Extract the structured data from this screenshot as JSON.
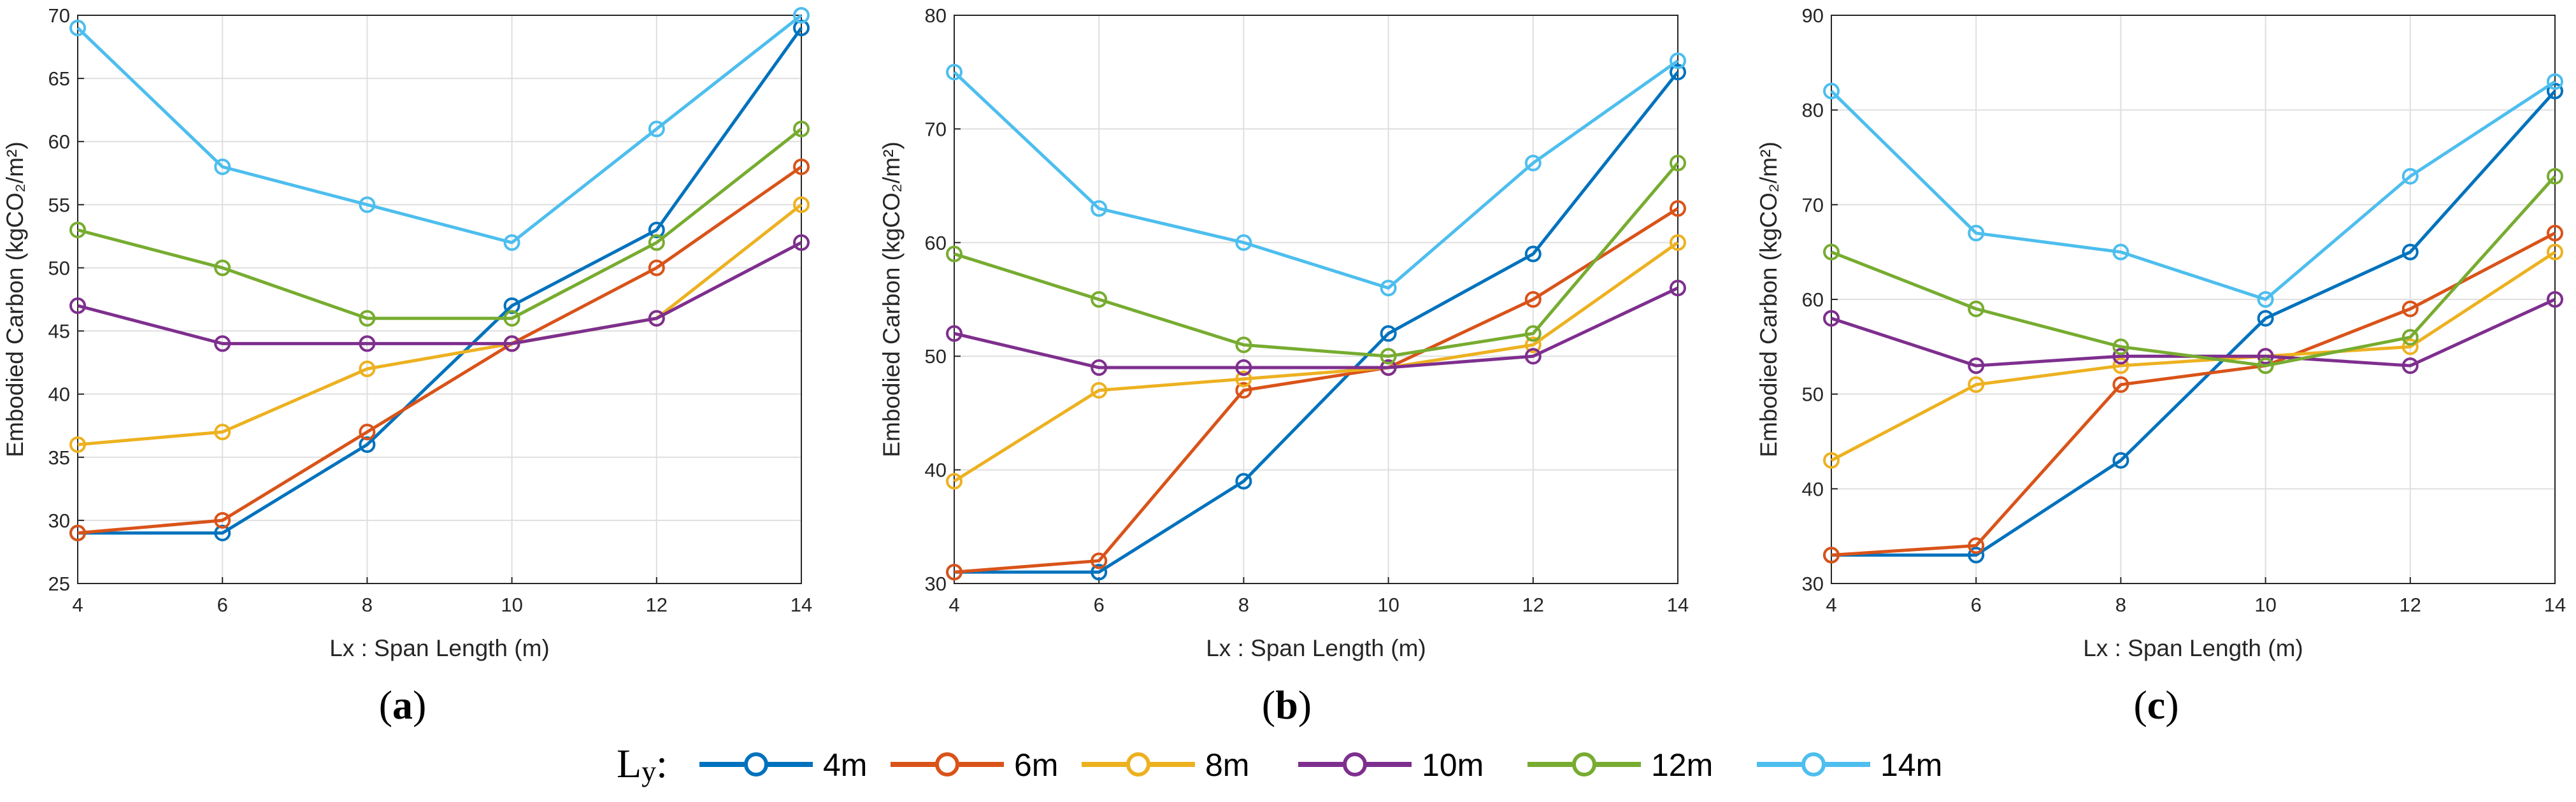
{
  "legend": {
    "title_main": "L",
    "title_sub": "y",
    "title_suffix": ":"
  },
  "series_colors": [
    "#0072bd",
    "#d95319",
    "#edb120",
    "#7e2f8e",
    "#77ac30",
    "#4dbeee"
  ],
  "chart_data": [
    {
      "type": "line",
      "label": "(a)",
      "label_open": "(",
      "label_letter": "a",
      "label_close": ")",
      "xlabel": "Lx : Span Length (m)",
      "ylabel": "Embodied Carbon (kgCO₂/m²)",
      "x": [
        4,
        6,
        8,
        10,
        12,
        14
      ],
      "xlim": [
        4,
        14
      ],
      "ylim": [
        25,
        70
      ],
      "yticks": [
        25,
        30,
        35,
        40,
        45,
        50,
        55,
        60,
        65,
        70
      ],
      "xticks": [
        4,
        6,
        8,
        10,
        12,
        14
      ],
      "grid": true,
      "series": [
        {
          "name": "4m",
          "values": [
            29,
            29,
            36,
            47,
            53,
            69
          ]
        },
        {
          "name": "6m",
          "values": [
            29,
            30,
            37,
            44,
            50,
            58
          ]
        },
        {
          "name": "8m",
          "values": [
            36,
            37,
            42,
            44,
            46,
            55
          ]
        },
        {
          "name": "10m",
          "values": [
            47,
            44,
            44,
            44,
            46,
            52
          ]
        },
        {
          "name": "12m",
          "values": [
            53,
            50,
            46,
            46,
            52,
            61
          ]
        },
        {
          "name": "14m",
          "values": [
            69,
            58,
            55,
            52,
            61,
            70
          ]
        }
      ]
    },
    {
      "type": "line",
      "label": "(b)",
      "label_open": "(",
      "label_letter": "b",
      "label_close": ")",
      "xlabel": "Lx : Span Length (m)",
      "ylabel": "Embodied Carbon (kgCO₂/m²)",
      "x": [
        4,
        6,
        8,
        10,
        12,
        14
      ],
      "xlim": [
        4,
        14
      ],
      "ylim": [
        30,
        80
      ],
      "yticks": [
        30,
        40,
        50,
        60,
        70,
        80
      ],
      "xticks": [
        4,
        6,
        8,
        10,
        12,
        14
      ],
      "grid": true,
      "series": [
        {
          "name": "4m",
          "values": [
            31,
            31,
            39,
            52,
            59,
            75
          ]
        },
        {
          "name": "6m",
          "values": [
            31,
            32,
            47,
            49,
            55,
            63
          ]
        },
        {
          "name": "8m",
          "values": [
            39,
            47,
            48,
            49,
            51,
            60
          ]
        },
        {
          "name": "10m",
          "values": [
            52,
            49,
            49,
            49,
            50,
            56
          ]
        },
        {
          "name": "12m",
          "values": [
            59,
            55,
            51,
            50,
            52,
            67
          ]
        },
        {
          "name": "14m",
          "values": [
            75,
            63,
            60,
            56,
            67,
            76
          ]
        }
      ]
    },
    {
      "type": "line",
      "label": "(c)",
      "label_open": "(",
      "label_letter": "c",
      "label_close": ")",
      "xlabel": "Lx : Span Length (m)",
      "ylabel": "Embodied Carbon (kgCO₂/m²)",
      "x": [
        4,
        6,
        8,
        10,
        12,
        14
      ],
      "xlim": [
        4,
        14
      ],
      "ylim": [
        30,
        90
      ],
      "yticks": [
        30,
        40,
        50,
        60,
        70,
        80,
        90
      ],
      "xticks": [
        4,
        6,
        8,
        10,
        12,
        14
      ],
      "grid": true,
      "series": [
        {
          "name": "4m",
          "values": [
            33,
            33,
            43,
            58,
            65,
            82
          ]
        },
        {
          "name": "6m",
          "values": [
            33,
            34,
            51,
            53,
            59,
            67
          ]
        },
        {
          "name": "8m",
          "values": [
            43,
            51,
            53,
            54,
            55,
            65
          ]
        },
        {
          "name": "10m",
          "values": [
            58,
            53,
            54,
            54,
            53,
            60
          ]
        },
        {
          "name": "12m",
          "values": [
            65,
            59,
            55,
            53,
            56,
            73
          ]
        },
        {
          "name": "14m",
          "values": [
            82,
            67,
            65,
            60,
            73,
            83
          ]
        }
      ]
    }
  ]
}
